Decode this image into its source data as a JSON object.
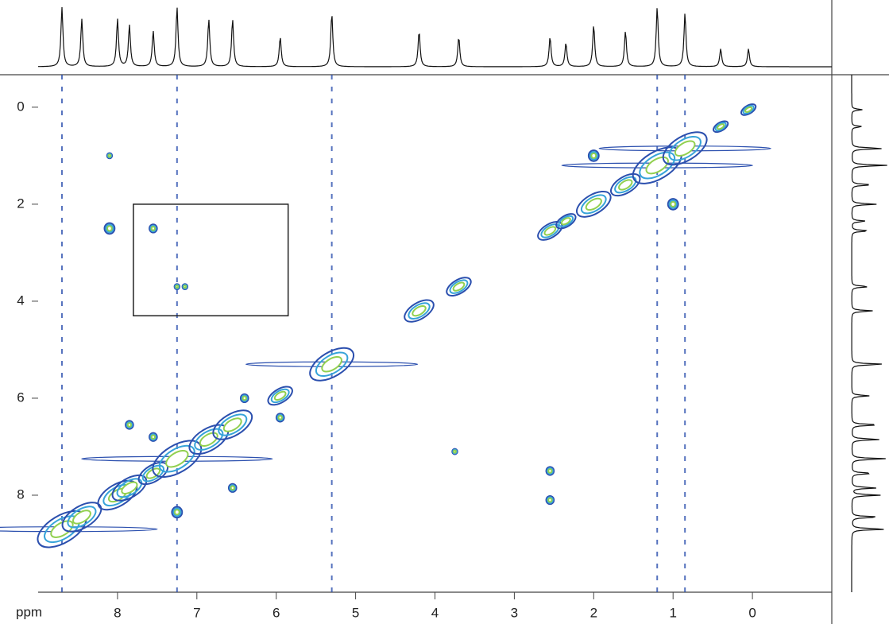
{
  "chart_data": {
    "type": "contour",
    "x_label": "ppm",
    "xlim": [
      9.0,
      -1.0
    ],
    "ylim": [
      -0.67,
      10.0
    ],
    "xticks": [
      8,
      7,
      6,
      5,
      4,
      3,
      2,
      1,
      0
    ],
    "yticks": [
      0,
      2,
      4,
      6,
      8
    ],
    "contour_colors": [
      "#2b4fae",
      "#36a3d9",
      "#92d050"
    ],
    "peaks": {
      "x": [
        8.7,
        8.45,
        8.0,
        7.85,
        7.55,
        7.25,
        6.85,
        6.55,
        5.95,
        5.3,
        4.2,
        3.7,
        2.55,
        2.35,
        2.0,
        1.6,
        1.2,
        0.85,
        0.4,
        0.05,
        8.1,
        7.55,
        8.1,
        7.25,
        7.15,
        6.4,
        5.95,
        6.55,
        2.55,
        2.55,
        3.75,
        2.0,
        1.0,
        7.25,
        7.85,
        7.55
      ],
      "y": [
        8.7,
        8.45,
        8.0,
        7.85,
        7.55,
        7.25,
        6.85,
        6.55,
        5.95,
        5.3,
        4.2,
        3.7,
        2.55,
        2.35,
        2.0,
        1.6,
        1.2,
        0.85,
        0.4,
        0.05,
        2.5,
        2.5,
        1.0,
        3.7,
        3.7,
        6.0,
        6.4,
        7.85,
        7.5,
        8.1,
        7.1,
        1.0,
        2.0,
        8.35,
        6.55,
        6.8
      ],
      "sizes": [
        10,
        8,
        8,
        7,
        6,
        10,
        8,
        8,
        5,
        9,
        6,
        5,
        5,
        4,
        7,
        6,
        10,
        9,
        3,
        3,
        4,
        3,
        2,
        2,
        2,
        3,
        3,
        3,
        3,
        3,
        2,
        4,
        4,
        4,
        3,
        3
      ]
    },
    "box": {
      "x": [
        7.8,
        5.85
      ],
      "y": [
        2.0,
        4.3
      ]
    }
  }
}
